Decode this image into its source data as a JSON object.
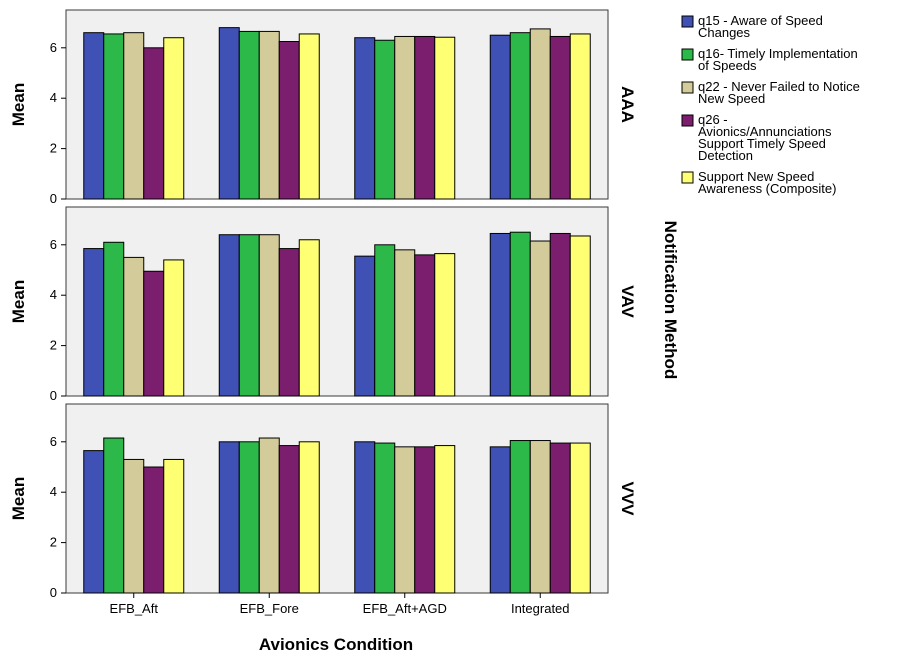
{
  "chart_data": {
    "type": "bar",
    "xlabel": "Avionics Condition",
    "ylabel": "Mean",
    "facet_label": "Notification Method",
    "categories": [
      "EFB_Aft",
      "EFB_Fore",
      "EFB_Aft+AGD",
      "Integrated"
    ],
    "ylim": [
      0,
      7.5
    ],
    "yticks": [
      0,
      2,
      4,
      6
    ],
    "legend_position": "top-right",
    "series": [
      {
        "name": "q15 - Aware of Speed Changes",
        "color": "#3f51b5"
      },
      {
        "name": "q16- Timely Implementation of Speeds",
        "color": "#2db84a"
      },
      {
        "name": "q22 - Never Failed to Notice New Speed",
        "color": "#d3cc9a"
      },
      {
        "name": "q26 - Avionics/Annunciations Support Timely Speed Detection",
        "color": "#7b1e6e"
      },
      {
        "name": "Support New Speed Awareness (Composite)",
        "color": "#ffff73"
      }
    ],
    "legend_lines": [
      [
        "q15 - Aware of Speed",
        "Changes"
      ],
      [
        "q16- Timely Implementation",
        "of Speeds"
      ],
      [
        "q22 - Never Failed to Notice",
        "New Speed"
      ],
      [
        "q26 -",
        "Avionics/Annunciations",
        "Support Timely Speed",
        "Detection"
      ],
      [
        "Support New Speed",
        "Awareness (Composite)"
      ]
    ],
    "panels": [
      {
        "label": "AAA",
        "values": [
          [
            6.6,
            6.55,
            6.6,
            6.0,
            6.4
          ],
          [
            6.8,
            6.65,
            6.65,
            6.25,
            6.55
          ],
          [
            6.4,
            6.3,
            6.45,
            6.45,
            6.42
          ],
          [
            6.5,
            6.6,
            6.75,
            6.45,
            6.55
          ]
        ]
      },
      {
        "label": "VAV",
        "values": [
          [
            5.85,
            6.1,
            5.5,
            4.95,
            5.4
          ],
          [
            6.4,
            6.4,
            6.4,
            5.85,
            6.2
          ],
          [
            5.55,
            6.0,
            5.8,
            5.6,
            5.65
          ],
          [
            6.45,
            6.5,
            6.15,
            6.45,
            6.35
          ]
        ]
      },
      {
        "label": "VVV",
        "values": [
          [
            5.65,
            6.15,
            5.3,
            5.0,
            5.3
          ],
          [
            6.0,
            6.0,
            6.15,
            5.85,
            6.0
          ],
          [
            6.0,
            5.95,
            5.8,
            5.8,
            5.85
          ],
          [
            5.8,
            6.05,
            6.05,
            5.95,
            5.95
          ]
        ]
      }
    ]
  }
}
